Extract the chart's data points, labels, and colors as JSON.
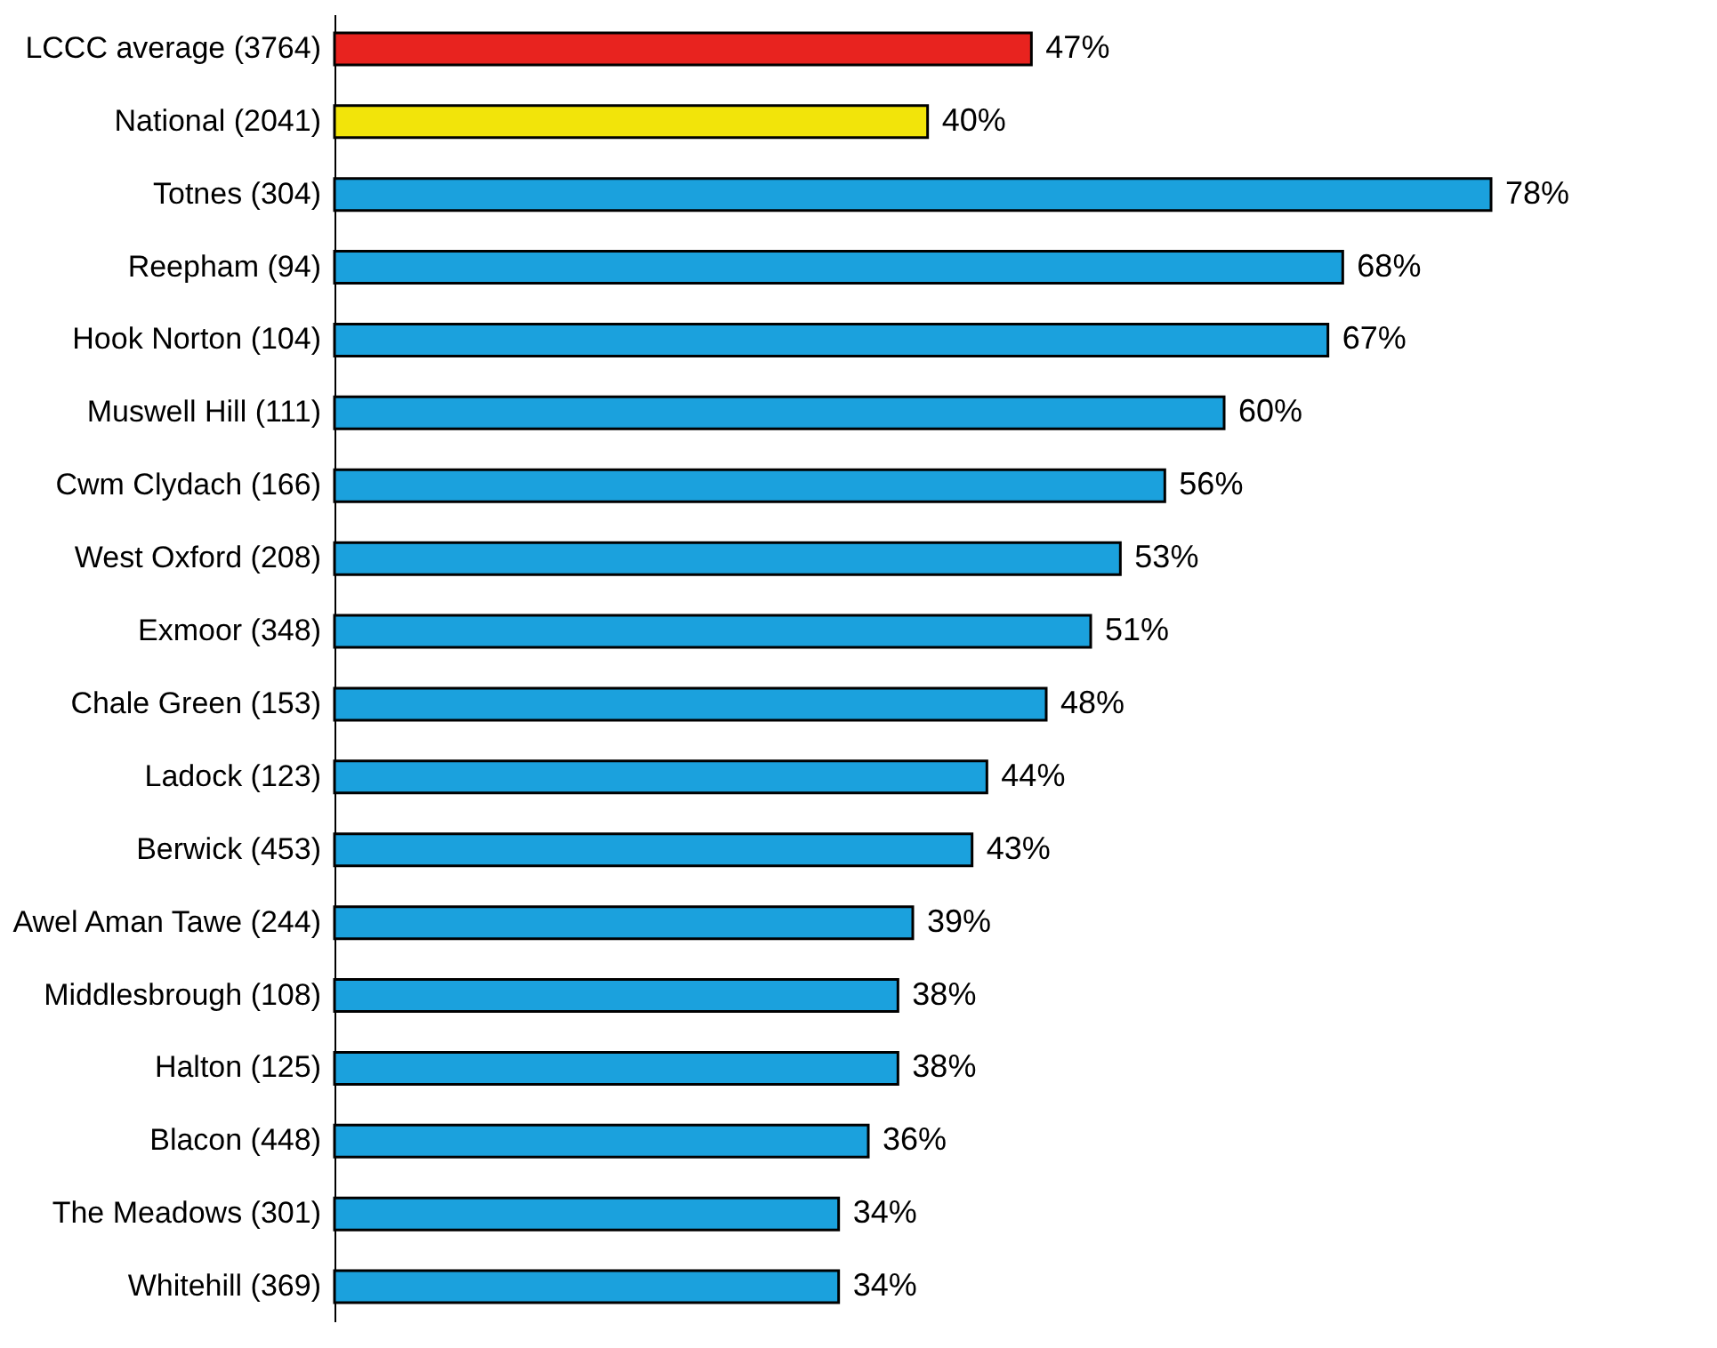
{
  "chart_data": {
    "type": "bar",
    "orientation": "horizontal",
    "categories": [
      "LCCC average (3764)",
      "National (2041)",
      "Totnes (304)",
      "Reepham (94)",
      "Hook Norton (104)",
      "Muswell Hill (111)",
      "Cwm Clydach (166)",
      "West Oxford (208)",
      "Exmoor (348)",
      "Chale Green (153)",
      "Ladock (123)",
      "Berwick (453)",
      "Awel Aman Tawe (244)",
      "Middlesbrough (108)",
      "Halton (125)",
      "Blacon (448)",
      "The Meadows (301)",
      "Whitehill (369)"
    ],
    "values": [
      47,
      40,
      78,
      68,
      67,
      60,
      56,
      53,
      51,
      48,
      44,
      43,
      39,
      38,
      38,
      36,
      34,
      34
    ],
    "value_labels": [
      "47%",
      "40%",
      "78%",
      "68%",
      "67%",
      "60%",
      "56%",
      "53%",
      "51%",
      "48%",
      "44%",
      "43%",
      "39%",
      "38%",
      "38%",
      "36%",
      "34%",
      "34%"
    ],
    "colors": [
      "#e8231f",
      "#f2e40a",
      "#1ba1dd",
      "#1ba1dd",
      "#1ba1dd",
      "#1ba1dd",
      "#1ba1dd",
      "#1ba1dd",
      "#1ba1dd",
      "#1ba1dd",
      "#1ba1dd",
      "#1ba1dd",
      "#1ba1dd",
      "#1ba1dd",
      "#1ba1dd",
      "#1ba1dd",
      "#1ba1dd",
      "#1ba1dd"
    ],
    "grid": false,
    "tick_labels": "y"
  }
}
